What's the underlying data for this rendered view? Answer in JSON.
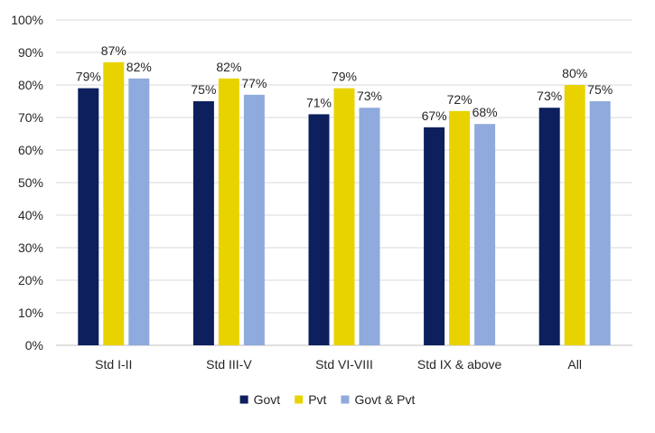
{
  "chart_data": {
    "type": "bar",
    "title": "",
    "xlabel": "",
    "ylabel": "",
    "categories": [
      "Std I-II",
      "Std III-V",
      "Std VI-VIII",
      "Std IX & above",
      "All"
    ],
    "series": [
      {
        "name": "Govt",
        "values": [
          79,
          75,
          71,
          67,
          73
        ],
        "color": "#0d1f5c",
        "labels": [
          "79%",
          "75%",
          "71%",
          "67%",
          "73%"
        ]
      },
      {
        "name": "Pvt",
        "values": [
          87,
          82,
          79,
          72,
          80
        ],
        "color": "#e8d300",
        "labels": [
          "87%",
          "82%",
          "79%",
          "72%",
          "80%"
        ]
      },
      {
        "name": "Govt & Pvt",
        "values": [
          82,
          77,
          73,
          68,
          75
        ],
        "color": "#8faadc",
        "labels": [
          "82%",
          "77%",
          "73%",
          "68%",
          "75%"
        ]
      }
    ],
    "ylim": [
      0,
      100
    ],
    "yticks": [
      0,
      10,
      20,
      30,
      40,
      50,
      60,
      70,
      80,
      90,
      100
    ],
    "ytick_labels": [
      "0%",
      "10%",
      "20%",
      "30%",
      "40%",
      "50%",
      "60%",
      "70%",
      "80%",
      "90%",
      "100%"
    ],
    "grid": true,
    "gridline_color": "#d9d9d9",
    "legend_position": "bottom-center"
  }
}
